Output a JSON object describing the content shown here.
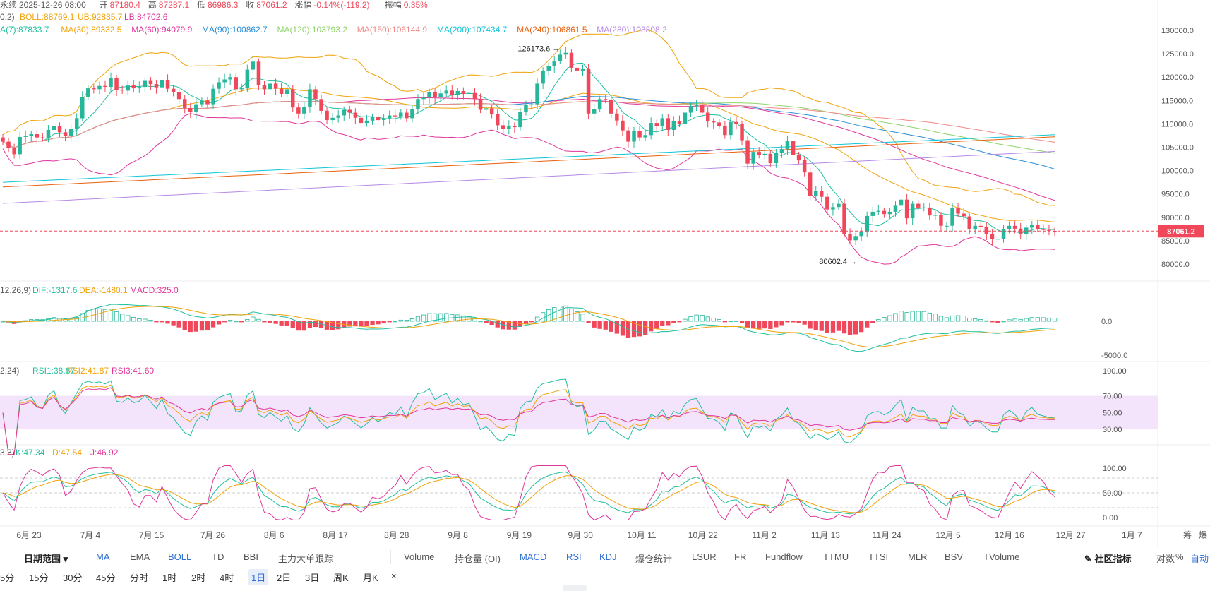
{
  "info_line": {
    "prefix": "永续",
    "date": "2025-12-26 08:00",
    "open_label": "开",
    "open": "87180.4",
    "high_label": "高",
    "high": "87287.1",
    "low_label": "低",
    "low": "86986.3",
    "close_label": "收",
    "close": "87061.2",
    "change_label": "涨幅",
    "change": "-0.14%(-119.2)",
    "amp_label": "振幅",
    "amp": "0.35%"
  },
  "boll_line": {
    "params": "0,2)",
    "boll": "BOLL:88769.1",
    "ub": "UB:92835.7",
    "lb": "LB:84702.6"
  },
  "ma_line": [
    {
      "text": "A(7):87833.7",
      "color": "#1fbf9f"
    },
    {
      "text": "MA(30):89332.5",
      "color": "#f0a30a"
    },
    {
      "text": "MA(60):94079.9",
      "color": "#e0369a"
    },
    {
      "text": "MA(90):100862.7",
      "color": "#2a8fd8"
    },
    {
      "text": "MA(120):103793.2",
      "color": "#8fd46a"
    },
    {
      "text": "MA(150):106144.9",
      "color": "#f08a8a"
    },
    {
      "text": "MA(200):107434.7",
      "color": "#10c6d6"
    },
    {
      "text": "MA(240):106861.5",
      "color": "#e8620f"
    },
    {
      "text": "MA(280):103898.2",
      "color": "#b68ae6"
    }
  ],
  "macd_line": {
    "params": "12,26,9)",
    "dif": "DIF:-1317.6",
    "dea": "DEA:-1480.1",
    "macd": "MACD:325.0"
  },
  "rsi_line": {
    "params": "2,24)",
    "rsi1": "RSI1:38.87",
    "rsi2": "RSI2:41.87",
    "rsi3": "RSI3:41.60"
  },
  "kdj_line": {
    "params": "3,3)",
    "k": "K:47.34",
    "d": "D:47.54",
    "j": "J:46.92"
  },
  "price_ticks": [
    "130000.0",
    "125000.0",
    "120000.0",
    "115000.0",
    "110000.0",
    "105000.0",
    "100000.0",
    "95000.0",
    "90000.0",
    "85000.0",
    "80000.0"
  ],
  "current_price_label": "87061.2",
  "high_marker": "126173.6",
  "low_marker": "80602.4",
  "macd_ticks": [
    "0.0",
    "-5000.0"
  ],
  "rsi_ticks": [
    "100.00",
    "70.00",
    "50.00",
    "30.00"
  ],
  "kdj_ticks": [
    "100.00",
    "50.00",
    "0.00"
  ],
  "date_ticks": [
    "6月 23",
    "7月 4",
    "7月 15",
    "7月 26",
    "8月 6",
    "8月 17",
    "8月 28",
    "9月 8",
    "9月 19",
    "9月 30",
    "10月 11",
    "10月 22",
    "11月 2",
    "11月 13",
    "11月 24",
    "12月 5",
    "12月 16",
    "12月 27",
    "1月 7"
  ],
  "right_axis_labels": [
    "筹",
    "爆"
  ],
  "colors": {
    "up": "#26b79a",
    "down": "#f0485a",
    "rsi_band": "#f3e4fb",
    "boll": "#f0a30a"
  },
  "toolbar1": {
    "date_range": "日期范围",
    "indicators_main": [
      "MA",
      "EMA",
      "BOLL",
      "TD",
      "BBI",
      "主力大单跟踪"
    ],
    "indicators_sub": [
      "Volume",
      "持仓量 (OI)",
      "MACD",
      "RSI",
      "KDJ",
      "爆仓统计",
      "LSUR",
      "FR",
      "Fundflow",
      "TTMU",
      "TTSI",
      "MLR",
      "BSV",
      "TVolume"
    ],
    "community": "社区指标",
    "log": "对数",
    "percent": "%",
    "auto": "自动"
  },
  "toolbar2": {
    "periods": [
      "5分",
      "15分",
      "30分",
      "45分",
      "分时",
      "1时",
      "2时",
      "4时",
      "1日",
      "2日",
      "3日",
      "周K",
      "月K"
    ],
    "active": "1日",
    "close": "×"
  },
  "chart_data": {
    "type": "candlestick",
    "ylim": [
      78500,
      131500
    ],
    "x_range": [
      "2025-06-20",
      "2025-12-26"
    ],
    "candles_close_sequence_note_free": [
      106200,
      104800,
      103500,
      107200,
      107400,
      107800,
      107100,
      106900,
      108700,
      109600,
      108200,
      107400,
      108900,
      111200,
      115800,
      117600,
      117400,
      118100,
      117900,
      119800,
      117300,
      117100,
      118200,
      117600,
      117900,
      119200,
      118500,
      117800,
      119400,
      117500,
      116800,
      115300,
      113400,
      112500,
      114200,
      115000,
      114200,
      117500,
      118900,
      119500,
      120000,
      117400,
      117600,
      121600,
      123300,
      118300,
      117400,
      118600,
      117500,
      116400,
      117400,
      113500,
      112200,
      113600,
      117400,
      115300,
      112800,
      110800,
      111300,
      111800,
      113000,
      112400,
      111300,
      110200,
      110700,
      111500,
      110800,
      111200,
      111800,
      111600,
      112400,
      111200,
      113200,
      115300,
      115600,
      116800,
      115700,
      116500,
      117100,
      116200,
      117000,
      116400,
      116600,
      115300,
      113000,
      113300,
      112100,
      109700,
      109000,
      109600,
      109300,
      112600,
      114000,
      114200,
      118600,
      121400,
      122300,
      123500,
      124800,
      125200,
      122000,
      121400,
      121700,
      112200,
      113200,
      115300,
      115200,
      112200,
      110700,
      108600,
      106200,
      108500,
      107100,
      107600,
      110200,
      109600,
      111200,
      108700,
      110600,
      110000,
      112400,
      113800,
      114100,
      112400,
      110500,
      110300,
      109600,
      107600,
      110400,
      110000,
      106500,
      101500,
      104000,
      103300,
      103600,
      101600,
      103800,
      104600,
      106300,
      103300,
      102200,
      99600,
      94600,
      95600,
      94400,
      91700,
      92200,
      92900,
      86500,
      85100,
      86000,
      87000,
      90300,
      91200,
      91400,
      90700,
      91200,
      92500,
      93800,
      89800,
      92900,
      92100,
      92100,
      90400,
      90500,
      88200,
      88200,
      92100,
      90800,
      90200,
      87400,
      88200,
      87900,
      86400,
      85400,
      85400,
      87500,
      88200,
      87600,
      86400,
      87800,
      88400,
      87500,
      87300,
      87100,
      87061.2
    ],
    "boll_ub": "92835.7",
    "boll_mid": "88769.1",
    "boll_lb": "84702.6"
  }
}
